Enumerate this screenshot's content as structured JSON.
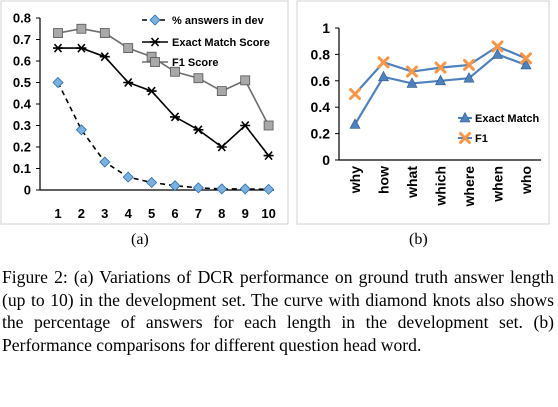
{
  "chart_data": [
    {
      "type": "line",
      "panel_label": "(a)",
      "x": [
        1,
        2,
        3,
        4,
        5,
        6,
        7,
        8,
        9,
        10
      ],
      "ylim": [
        0,
        0.8
      ],
      "yticks": [
        "0",
        "0.1",
        "0.2",
        "0.3",
        "0.4",
        "0.5",
        "0.6",
        "0.7",
        "0.8"
      ],
      "xticks": [
        "1",
        "2",
        "3",
        "4",
        "5",
        "6",
        "7",
        "8",
        "9",
        "10"
      ],
      "legend_position": "top-right",
      "grid": false,
      "series": [
        {
          "name": "% answers in dev",
          "marker": "diamond",
          "line": "dashed",
          "color": "#7cb0de",
          "line_color": "#000000",
          "values": [
            0.5,
            0.28,
            0.13,
            0.06,
            0.035,
            0.02,
            0.01,
            0.005,
            0.005,
            0.003
          ]
        },
        {
          "name": "Exact Match Score",
          "marker": "asterisk",
          "line": "solid",
          "color": "#000000",
          "line_color": "#000000",
          "values": [
            0.66,
            0.66,
            0.62,
            0.5,
            0.46,
            0.34,
            0.28,
            0.2,
            0.3,
            0.16
          ]
        },
        {
          "name": "F1 Score",
          "marker": "square",
          "line": "solid",
          "color": "#a8a8a8",
          "line_color": "#6e6e6e",
          "values": [
            0.73,
            0.75,
            0.73,
            0.66,
            0.62,
            0.55,
            0.52,
            0.46,
            0.51,
            0.3
          ]
        }
      ]
    },
    {
      "type": "line",
      "panel_label": "(b)",
      "categories": [
        "why",
        "how",
        "what",
        "which",
        "where",
        "when",
        "who"
      ],
      "ylim": [
        0,
        1
      ],
      "yticks": [
        "0",
        "0.2",
        "0.4",
        "0.6",
        "0.8",
        "1"
      ],
      "legend_position": "bottom-right",
      "grid": false,
      "series": [
        {
          "name": "Exact Match",
          "marker": "triangle",
          "line": "solid",
          "color": "#4f81bd",
          "line_color": "#4f81bd",
          "values": [
            0.27,
            0.63,
            0.58,
            0.6,
            0.62,
            0.8,
            0.72
          ]
        },
        {
          "name": "F1",
          "marker": "x",
          "line": "solid",
          "color": "#f79646",
          "line_color": "#4f81bd",
          "values": [
            0.5,
            0.74,
            0.67,
            0.7,
            0.72,
            0.86,
            0.77
          ]
        }
      ]
    }
  ],
  "caption": "Figure 2: (a) Variations of DCR performance on ground truth answer length (up to 10) in the development set. The curve with diamond knots also shows the percentage of answers for each length in the development set. (b) Performance comparisons for different question head word."
}
